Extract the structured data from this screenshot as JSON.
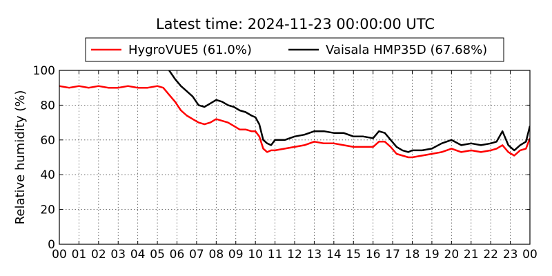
{
  "chart_data": {
    "type": "line",
    "title": "Latest time: 2024-11-23 00:00:00 UTC",
    "xlabel": "",
    "ylabel": "Relative humidity (%)",
    "xlim": [
      0,
      24
    ],
    "ylim": [
      0,
      100
    ],
    "grid": true,
    "legend_position": "top",
    "x_tick_labels": [
      "00",
      "01",
      "02",
      "03",
      "04",
      "05",
      "06",
      "07",
      "08",
      "09",
      "10",
      "11",
      "12",
      "13",
      "14",
      "15",
      "16",
      "17",
      "18",
      "19",
      "20",
      "21",
      "22",
      "23",
      "00"
    ],
    "y_ticks": [
      0,
      20,
      40,
      60,
      80,
      100
    ],
    "series": [
      {
        "name": "HygroVUE5 (61.0%)",
        "color": "#ff0000",
        "x": [
          0,
          0.5,
          1,
          1.5,
          2,
          2.5,
          3,
          3.5,
          4,
          4.5,
          5,
          5.3,
          5.6,
          5.9,
          6.2,
          6.5,
          6.8,
          7.1,
          7.4,
          7.7,
          8,
          8.3,
          8.6,
          8.9,
          9.2,
          9.5,
          9.8,
          10,
          10.2,
          10.4,
          10.6,
          10.8,
          11,
          11.5,
          12,
          12.5,
          13,
          13.5,
          14,
          14.5,
          15,
          15.5,
          16,
          16.3,
          16.6,
          16.9,
          17.2,
          17.5,
          17.8,
          18,
          18.5,
          19,
          19.5,
          20,
          20.5,
          21,
          21.5,
          22,
          22.3,
          22.6,
          22.9,
          23.2,
          23.5,
          23.8,
          24
        ],
        "values": [
          91,
          90,
          91,
          90,
          91,
          90,
          90,
          91,
          90,
          90,
          91,
          90,
          86,
          82,
          77,
          74,
          72,
          70,
          69,
          70,
          72,
          71,
          70,
          68,
          66,
          66,
          65,
          65,
          62,
          55,
          53,
          54,
          54,
          55,
          56,
          57,
          59,
          58,
          58,
          57,
          56,
          56,
          56,
          59,
          59,
          56,
          52,
          51,
          50,
          50,
          51,
          52,
          53,
          55,
          53,
          54,
          53,
          54,
          55,
          57,
          53,
          51,
          54,
          55,
          61
        ]
      },
      {
        "name": "Vaisala HMP35D (67.68%)",
        "color": "#000000",
        "x": [
          5.6,
          5.9,
          6.2,
          6.5,
          6.8,
          7.1,
          7.4,
          7.7,
          8,
          8.3,
          8.6,
          8.9,
          9.2,
          9.5,
          9.8,
          10,
          10.2,
          10.4,
          10.6,
          10.8,
          11,
          11.5,
          12,
          12.5,
          13,
          13.5,
          14,
          14.5,
          15,
          15.5,
          16,
          16.3,
          16.6,
          16.9,
          17.2,
          17.5,
          17.8,
          18,
          18.5,
          19,
          19.5,
          20,
          20.5,
          21,
          21.5,
          22,
          22.3,
          22.6,
          22.9,
          23.2,
          23.5,
          23.8,
          24
        ],
        "values": [
          100,
          95,
          91,
          88,
          85,
          80,
          79,
          81,
          83,
          82,
          80,
          79,
          77,
          76,
          74,
          73,
          69,
          60,
          58,
          57,
          60,
          60,
          62,
          63,
          65,
          65,
          64,
          64,
          62,
          62,
          61,
          65,
          64,
          60,
          56,
          54,
          53,
          54,
          54,
          55,
          58,
          60,
          57,
          58,
          57,
          58,
          59,
          65,
          57,
          54,
          57,
          59,
          68
        ]
      }
    ]
  }
}
